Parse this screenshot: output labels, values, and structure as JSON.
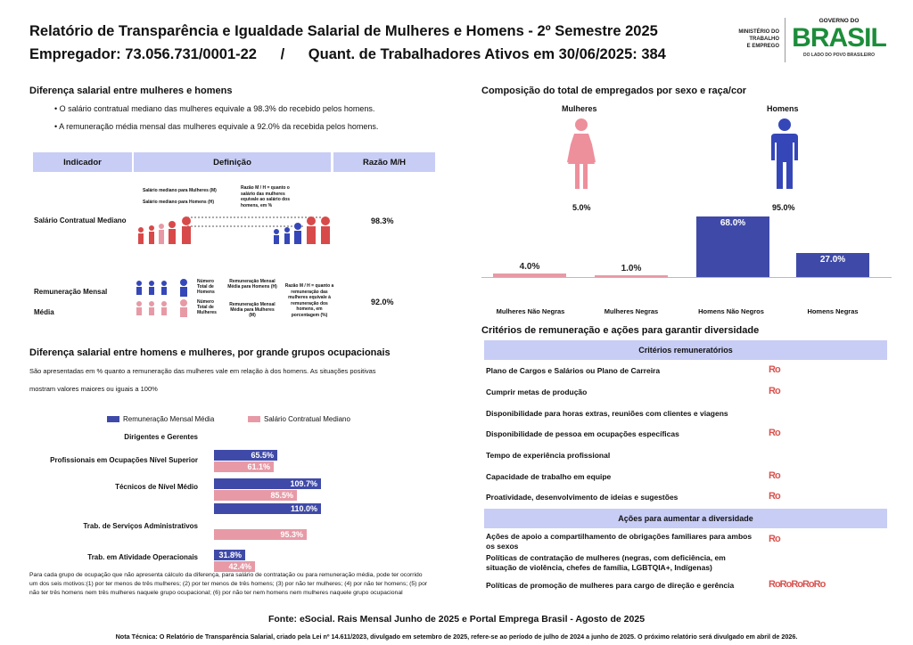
{
  "header": {
    "title": "Relatório de Transparência e Igualdade Salarial de Mulheres e Homens - 2º Semestre 2025",
    "subtitle_employer": "Empregador: 73.056.731/0001-22",
    "subtitle_sep": "/",
    "subtitle_workers": "Quant. de Trabalhadores Ativos em 30/06/2025: 384"
  },
  "logos": {
    "ministry_line1": "MINISTÉRIO DO",
    "ministry_line2": "TRABALHO",
    "ministry_line3": "E EMPREGO",
    "gov_top": "GOVERNO DO",
    "gov_brasil": "BRASIL",
    "gov_bottom": "DO LADO DO POVO BRASILEIRO"
  },
  "salary_diff": {
    "title": "Diferença salarial entre mulheres e homens",
    "bullet1": "• O salário contratual mediano das mulheres equivale a 98.3% do recebido pelos homens.",
    "bullet2": "• A remuneração média mensal das mulheres equivale a 92.0% da recebida pelos homens.",
    "table": {
      "col1": "Indicador",
      "col2": "Definição",
      "col3": "Razão M/H",
      "row1_label": "Salário Contratual Mediano",
      "row1_value": "98.3%",
      "row1_def_a": "Salário mediano para Mulheres (M)",
      "row1_def_b": "Salário mediano para Homens (H)",
      "row1_def_c": "Razão M / H = quanto o salário das mulheres equivale ao salário dos homens, em %",
      "row2_label_a": "Remuneração Mensal",
      "row2_label_b": "Média",
      "row2_value": "92.0%",
      "row2_def_men_a": "Número Total de Homens",
      "row2_def_men_b": "Remuneração Mensal Média para Homens (H)",
      "row2_def_women_a": "Número Total de Mulheres",
      "row2_def_women_b": "Remuneração Mensal Média para Mulheres (M)",
      "row2_def_c": "Razão M / H = quanto a remuneração das mulheres equivale à remuneração dos homens, em porcentagem (%)"
    }
  },
  "occupational": {
    "title": "Diferença salarial entre homens e mulheres, por grande grupos ocupacionais",
    "desc_a": "São apresentadas em % quanto a remuneração das mulheres vale em relação à dos homens. As situações positivas",
    "desc_b": "mostram valores maiores ou iguais a 100%",
    "footnote": "Para cada grupo de ocupação que não apresenta cálculo da diferença, para salário de contratação ou para remuneração média, pode ter ocorrido um dos seis motivos:(1) por ter menos de três mulheres; (2) por ter menos de três homens; (3) por não ter mulheres; (4) por não ter homens; (5) por não ter três homens nem três mulheres naquele grupo ocupacional; (6) por não ter nem homens nem mulheres naquele grupo ocupacional"
  },
  "composition": {
    "title": "Composição do total de empregados por sexo e raça/cor",
    "women_label": "Mulheres",
    "men_label": "Homens",
    "women_pct": "5.0%",
    "men_pct": "95.0%"
  },
  "criteria": {
    "title": "Critérios de remuneração e ações para garantir diversidade",
    "header1": "Critérios remuneratórios",
    "items": [
      {
        "label": "Plano de Cargos e Salários ou Plano de Carreira",
        "icon": "Ro"
      },
      {
        "label": "Cumprir metas de produção",
        "icon": "Ro"
      },
      {
        "label": "Disponibilidade para horas extras, reuniões com clientes e viagens",
        "icon": ""
      },
      {
        "label": "Disponibilidade de pessoa em ocupações específicas",
        "icon": "Ro"
      },
      {
        "label": "Tempo de experiência profissional",
        "icon": ""
      },
      {
        "label": "Capacidade de trabalho em equipe",
        "icon": "Ro"
      },
      {
        "label": "Proatividade, desenvolvimento de ideias e sugestões",
        "icon": "Ro"
      }
    ],
    "header2": "Ações para aumentar a diversidade",
    "actions": [
      {
        "label": "Ações de apoio a compartilhamento de obrigações familiares para ambos os sexos",
        "icon": "Ro"
      },
      {
        "label": "Políticas de contratação de mulheres (negras, com deficiência, em situação de violência, chefes de família, LGBTQIA+, Indígenas)",
        "icon": ""
      },
      {
        "label": "Políticas de promoção de mulheres para cargo de direção e gerência",
        "icon": "RoRoRoRoRo"
      }
    ]
  },
  "footer": {
    "source": "Fonte: eSocial. Rais Mensal Junho de 2025 e Portal Emprega Brasil - Agosto de 2025",
    "note": "Nota Técnica: O Relatório de Transparência Salarial, criado pela Lei nº 14.611/2023, divulgado em setembro de 2025, refere-se ao período de julho de 2024 a junho de 2025. O próximo relatório será divulgado em abril de 2026."
  },
  "colors": {
    "navy": "#3f4aa8",
    "pink": "#e79aa6",
    "women": "#ee8f9c",
    "men": "#3547b8",
    "header_bg": "#c8cdf5",
    "red": "#d9534f"
  },
  "chart_data": [
    {
      "type": "bar",
      "title": "Composição do total de empregados por sexo e raça/cor",
      "categories": [
        "Mulheres Não Negras",
        "Mulheres Negras",
        "Homens Não Negros",
        "Homens Negras"
      ],
      "values": [
        4.0,
        1.0,
        68.0,
        27.0
      ],
      "value_labels": [
        "4.0%",
        "1.0%",
        "68.0%",
        "27.0%"
      ],
      "colors": [
        "#e79aa6",
        "#e79aa6",
        "#3f4aa8",
        "#3f4aa8"
      ],
      "ylim": [
        0,
        70
      ]
    },
    {
      "type": "bar",
      "orientation": "horizontal",
      "title": "Diferença salarial entre homens e mulheres, por grande grupos ocupacionais",
      "categories": [
        "Dirigentes e Gerentes",
        "Profissionais em Ocupações Nível Superior",
        "Técnicos de Nível Médio",
        "Trab. de Serviços Administrativos",
        "Trab. em Atividade Operacionais"
      ],
      "series": [
        {
          "name": "Remuneração Mensal Média",
          "color": "#3f4aa8",
          "values": [
            null,
            65.5,
            109.7,
            110.0,
            31.8
          ],
          "labels": [
            "",
            "65.5%",
            "109.7%",
            "110.0%",
            "31.8%"
          ]
        },
        {
          "name": "Salário Contratual Mediano",
          "color": "#e79aa6",
          "values": [
            null,
            61.1,
            85.5,
            95.3,
            42.4
          ],
          "labels": [
            "",
            "61.1%",
            "85.5%",
            "95.3%",
            "42.4%"
          ]
        }
      ],
      "legend": "top",
      "xlim": [
        0,
        110
      ]
    }
  ]
}
